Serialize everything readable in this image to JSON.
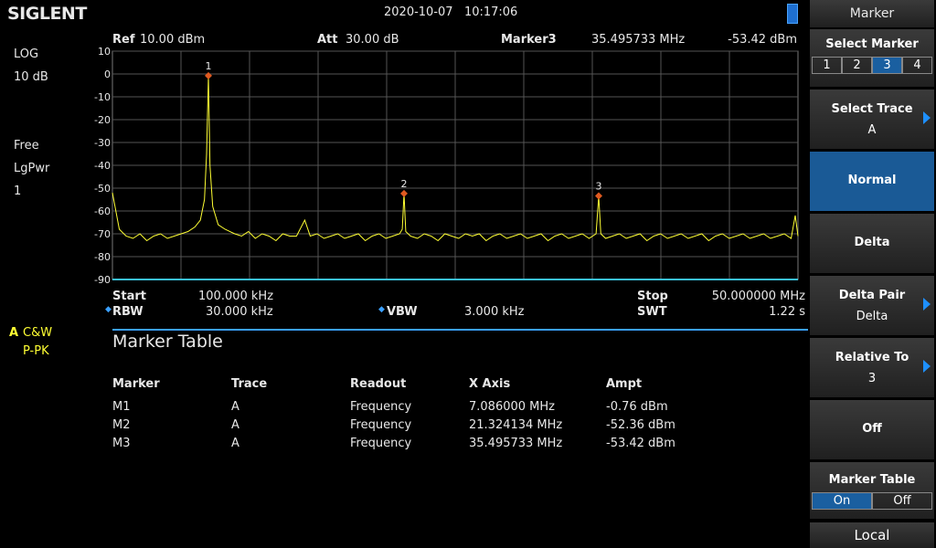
{
  "header": {
    "brand": "SIGLENT",
    "datetime": "2020-10-07   10:17:06"
  },
  "left_panel": {
    "scale": "LOG",
    "div": "10 dB",
    "trigger": "Free",
    "detector": "LgPwr",
    "average": "1",
    "trace": "A",
    "trace_mode": "C&W",
    "trace_detector": "P-PK"
  },
  "screen": {
    "ref_label": "Ref",
    "ref": "10.00 dBm",
    "att_label": "Att",
    "att": "30.00 dB",
    "marker_label": "Marker3",
    "marker_freq": "35.495733 MHz",
    "marker_ampt": "-53.42 dBm",
    "start_label": "Start",
    "start": "100.000 kHz",
    "stop_label": "Stop",
    "stop": "50.000000 MHz",
    "rbw_label": "RBW",
    "rbw": "30.000 kHz",
    "vbw_label": "VBW",
    "vbw": "3.000 kHz",
    "swt_label": "SWT",
    "swt": "1.22 s"
  },
  "chart_data": {
    "type": "line",
    "color": "#ffff33",
    "xlim": [
      0.1,
      50
    ],
    "ylim": [
      -90,
      10
    ],
    "yticks": [
      10,
      0,
      -10,
      -20,
      -30,
      -40,
      -50,
      -60,
      -70,
      -80,
      -90
    ],
    "grid": true,
    "x": [
      0.1,
      0.6,
      1.1,
      1.6,
      2.1,
      2.6,
      3.1,
      3.6,
      4.1,
      4.6,
      5.1,
      5.6,
      6.1,
      6.5,
      6.8,
      6.95,
      7.05,
      7.086,
      7.12,
      7.2,
      7.4,
      7.8,
      8.3,
      9.0,
      9.5,
      10,
      10.5,
      11,
      11.5,
      12,
      12.5,
      13,
      13.5,
      14.1,
      14.5,
      15,
      15.5,
      16,
      16.5,
      17,
      17.5,
      18,
      18.5,
      19,
      19.5,
      20,
      20.5,
      21,
      21.2,
      21.324134,
      21.45,
      21.8,
      22.3,
      22.8,
      23.3,
      23.8,
      24.3,
      24.8,
      25.3,
      25.8,
      26.3,
      26.8,
      27.3,
      27.8,
      28.3,
      28.8,
      29.3,
      29.8,
      30.3,
      30.8,
      31.3,
      31.8,
      32.3,
      32.8,
      33.3,
      33.8,
      34.3,
      34.8,
      35.3,
      35.495733,
      35.65,
      36,
      36.5,
      37,
      37.5,
      38,
      38.5,
      39,
      39.5,
      40,
      40.5,
      41,
      41.5,
      42,
      42.5,
      43,
      43.5,
      44,
      44.5,
      45,
      45.5,
      46,
      46.5,
      47,
      47.5,
      48,
      48.5,
      49,
      49.5,
      49.8,
      50
    ],
    "values": [
      -52,
      -68,
      -71,
      -72,
      -70,
      -73,
      -71,
      -70,
      -72,
      -71,
      -70,
      -69,
      -67,
      -64,
      -55,
      -35,
      -10,
      -0.76,
      -12,
      -40,
      -58,
      -66,
      -68,
      -70,
      -71,
      -69,
      -72,
      -70,
      -71,
      -73,
      -70,
      -71,
      -71,
      -64,
      -71,
      -70,
      -72,
      -71,
      -70,
      -72,
      -71,
      -70,
      -73,
      -71,
      -70,
      -72,
      -71,
      -70,
      -68,
      -52.36,
      -69,
      -71,
      -72,
      -70,
      -71,
      -73,
      -70,
      -71,
      -72,
      -70,
      -71,
      -70,
      -73,
      -71,
      -70,
      -72,
      -71,
      -70,
      -72,
      -71,
      -70,
      -73,
      -71,
      -70,
      -72,
      -71,
      -70,
      -72,
      -70,
      -53.42,
      -70,
      -72,
      -71,
      -70,
      -72,
      -71,
      -70,
      -73,
      -71,
      -70,
      -72,
      -71,
      -70,
      -72,
      -71,
      -70,
      -73,
      -71,
      -70,
      -72,
      -71,
      -70,
      -72,
      -71,
      -70,
      -72,
      -71,
      -70,
      -72,
      -62,
      -71
    ],
    "markers": [
      {
        "label": "1",
        "x": 7.086,
        "y": -0.76
      },
      {
        "label": "2",
        "x": 21.324134,
        "y": -52.36
      },
      {
        "label": "3",
        "x": 35.495733,
        "y": -53.42
      }
    ],
    "marker_color": "#e05a20"
  },
  "marker_table": {
    "title": "Marker Table",
    "columns": [
      "Marker",
      "Trace",
      "Readout",
      "X Axis",
      "Ampt"
    ],
    "rows": [
      [
        "M1",
        "A",
        "Frequency",
        "7.086000 MHz",
        "-0.76 dBm"
      ],
      [
        "M2",
        "A",
        "Frequency",
        "21.324134 MHz",
        "-52.36 dBm"
      ],
      [
        "M3",
        "A",
        "Frequency",
        "35.495733 MHz",
        "-53.42 dBm"
      ]
    ]
  },
  "menu": {
    "title": "Marker",
    "select_marker": "Select Marker",
    "marker_options": [
      "1",
      "2",
      "3",
      "4"
    ],
    "select_trace": "Select Trace",
    "trace": "A",
    "normal": "Normal",
    "delta": "Delta",
    "delta_pair": "Delta Pair",
    "delta_pair_value": "Delta",
    "relative_to": "Relative To",
    "relative_to_value": "3",
    "off": "Off",
    "marker_table": "Marker Table",
    "table_on": "On",
    "table_off": "Off",
    "local": "Local"
  }
}
